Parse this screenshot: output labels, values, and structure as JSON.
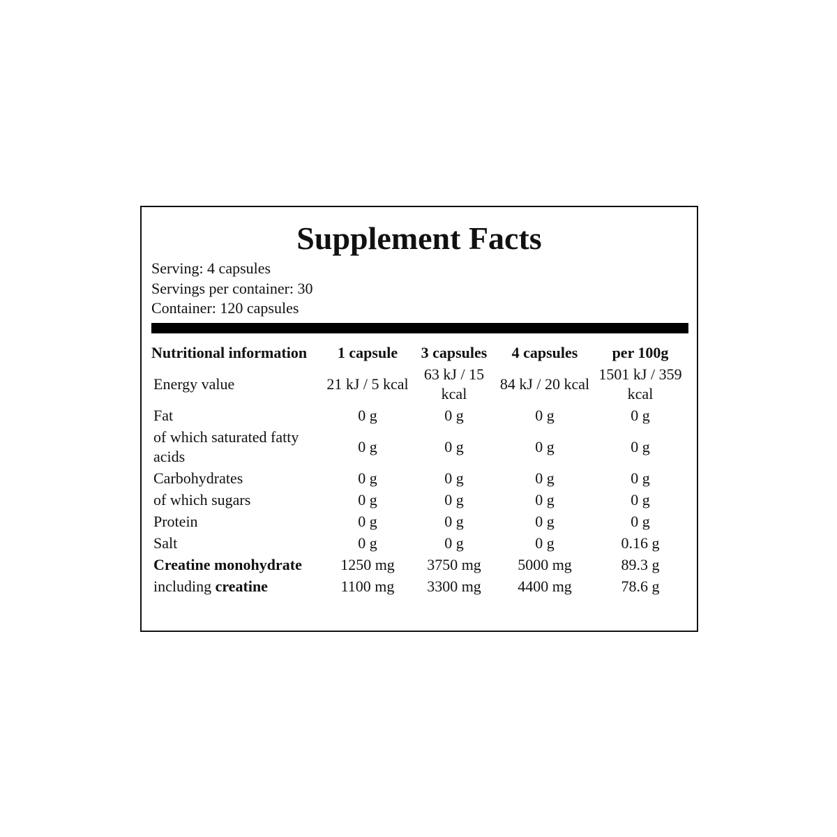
{
  "title": "Supplement Facts",
  "serving": [
    "Serving: 4 capsules",
    "Servings per container: 30",
    "Container: 120 capsules"
  ],
  "table": {
    "header": [
      "Nutritional information",
      "1 capsule",
      "3 capsules",
      "4 capsules",
      "per 100g"
    ],
    "rows": [
      {
        "label": "Energy value",
        "values": [
          "21 kJ / 5 kcal",
          "63 kJ / 15 kcal",
          "84 kJ / 20 kcal",
          "1501 kJ / 359 kcal"
        ]
      },
      {
        "label": "Fat",
        "values": [
          "0 g",
          "0 g",
          "0 g",
          "0 g"
        ]
      },
      {
        "label": "of which saturated fatty acids",
        "values": [
          "0 g",
          "0 g",
          "0 g",
          "0 g"
        ]
      },
      {
        "label": "Carbohydrates",
        "values": [
          "0 g",
          "0 g",
          "0 g",
          "0 g"
        ]
      },
      {
        "label": "of which sugars",
        "values": [
          "0 g",
          "0 g",
          "0 g",
          "0 g"
        ]
      },
      {
        "label": "Protein",
        "values": [
          "0 g",
          "0 g",
          "0 g",
          "0 g"
        ]
      },
      {
        "label": "Salt",
        "values": [
          "0 g",
          "0 g",
          "0 g",
          "0.16 g"
        ]
      },
      {
        "label": "Creatine monohydrate",
        "bold": true,
        "values": [
          "1250 mg",
          "3750 mg",
          "5000 mg",
          "89.3 g"
        ]
      },
      {
        "label": "including",
        "label_bold": "creatine",
        "values": [
          "1100 mg",
          "3300 mg",
          "4400 mg",
          "78.6 g"
        ]
      }
    ]
  }
}
